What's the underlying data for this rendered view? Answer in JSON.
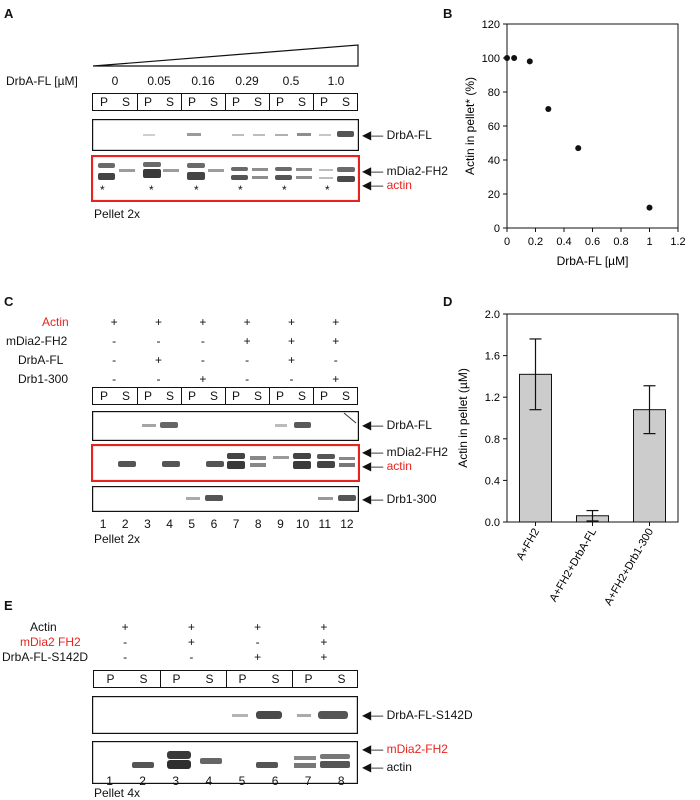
{
  "panel_a": {
    "label": "A",
    "conc_label": "DrbA-FL [µM]",
    "concentrations": [
      "0",
      "0.05",
      "0.16",
      "0.29",
      "0.5",
      "1.0"
    ],
    "lane_letters": [
      "P",
      "S",
      "P",
      "S",
      "P",
      "S",
      "P",
      "S",
      "P",
      "S",
      "P",
      "S"
    ],
    "band_labels": {
      "drba": "DrbA-FL",
      "mdia": "mDia2-FH2",
      "actin": "actin"
    },
    "asterisk": "*",
    "footer": "Pellet 2x"
  },
  "panel_b": {
    "label": "B",
    "chart_data": {
      "type": "scatter",
      "xlabel": "DrbA-FL [µM]",
      "ylabel": "Actin in pellet* (%)",
      "xlim": [
        0,
        1.2
      ],
      "ylim": [
        0,
        120
      ],
      "xticks": [
        "0",
        "0.2",
        "0.4",
        "0.6",
        "0.8",
        "1",
        "1.2"
      ],
      "yticks": [
        "0",
        "20",
        "40",
        "60",
        "80",
        "100",
        "120"
      ],
      "x": [
        0,
        0.05,
        0.16,
        0.29,
        0.5,
        1.0
      ],
      "y": [
        100,
        100,
        98,
        70,
        47,
        12
      ]
    }
  },
  "panel_c": {
    "label": "C",
    "row_labels": [
      "Actin",
      "mDia2-FH2",
      "DrbA-FL",
      "Drb1-300"
    ],
    "signs": [
      [
        "+",
        "+",
        "+",
        "+",
        "+",
        "+"
      ],
      [
        "-",
        "-",
        "-",
        "+",
        "+",
        "+"
      ],
      [
        "-",
        "+",
        "-",
        "-",
        "+",
        "-"
      ],
      [
        "-",
        "-",
        "+",
        "-",
        "-",
        "+"
      ]
    ],
    "lane_letters": [
      "P",
      "S",
      "P",
      "S",
      "P",
      "S",
      "P",
      "S",
      "P",
      "S",
      "P",
      "S"
    ],
    "lane_numbers": [
      "1",
      "2",
      "3",
      "4",
      "5",
      "6",
      "7",
      "8",
      "9",
      "10",
      "11",
      "12"
    ],
    "band_labels": {
      "drba": "DrbA-FL",
      "mdia": "mDia2-FH2",
      "actin": "actin",
      "drb1": "Drb1-300"
    },
    "footer": "Pellet 2x"
  },
  "panel_d": {
    "label": "D",
    "chart_data": {
      "type": "bar",
      "categories": [
        "A+FH2",
        "A+FH2+DrbA-FL",
        "A+FH2+Drb1-300"
      ],
      "values": [
        1.42,
        0.06,
        1.08
      ],
      "errors": [
        0.34,
        0.05,
        0.23
      ],
      "ylabel": "Actin in pellet (µM)",
      "ylim": [
        0,
        2.0
      ],
      "yticks": [
        "0.0",
        "0.4",
        "0.8",
        "1.2",
        "1.6",
        "2.0"
      ],
      "bar_color": "#cccccc"
    }
  },
  "panel_e": {
    "label": "E",
    "row_labels": [
      "Actin",
      "mDia2 FH2",
      "DrbA-FL-S142D"
    ],
    "signs": [
      [
        "+",
        "+",
        "+",
        "+"
      ],
      [
        "-",
        "+",
        "-",
        "+"
      ],
      [
        "-",
        "-",
        "+",
        "+"
      ]
    ],
    "lane_letters": [
      "P",
      "S",
      "P",
      "S",
      "P",
      "S",
      "P",
      "S"
    ],
    "lane_numbers": [
      "1",
      "2",
      "3",
      "4",
      "5",
      "6",
      "7",
      "8"
    ],
    "band_labels": {
      "drba": "DrbA-FL-S142D",
      "mdia": "mDia2-FH2",
      "actin": "actin"
    },
    "footer": "Pellet 4x"
  },
  "colors": {
    "red": "#e8231f",
    "gel_dark": "#555555",
    "border": "#111111"
  }
}
